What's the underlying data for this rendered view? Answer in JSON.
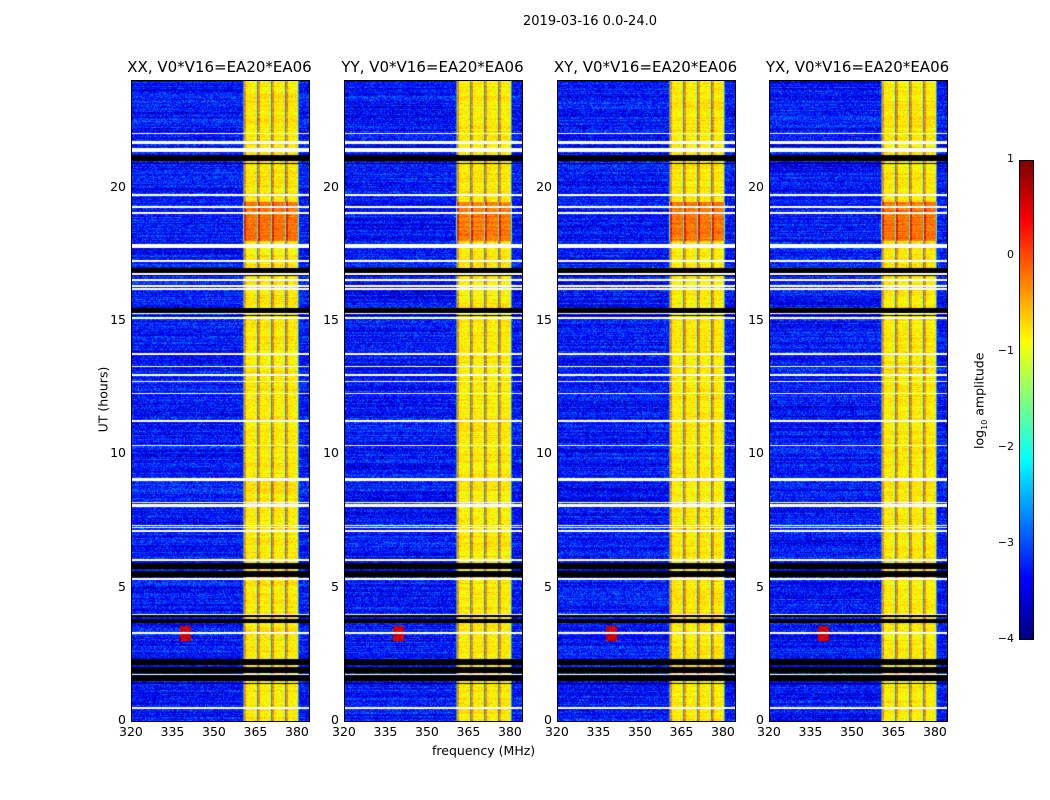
{
  "chart_data": {
    "type": "heatmap",
    "title": "2019-03-16 0.0-24.0",
    "xlabel": "frequency (MHz)",
    "ylabel": "UT (hours)",
    "xlim": [
      320,
      384
    ],
    "ylim": [
      0,
      24
    ],
    "xticks": [
      "320",
      "335",
      "350",
      "365",
      "380"
    ],
    "yticks": [
      "0",
      "5",
      "10",
      "15",
      "20"
    ],
    "panels": [
      {
        "title": "XX, V0*V16=EA20*EA06"
      },
      {
        "title": "YY, V0*V16=EA20*EA06"
      },
      {
        "title": "XY, V0*V16=EA20*EA06"
      },
      {
        "title": "YX, V0*V16=EA20*EA06"
      }
    ],
    "colorbar": {
      "label_prefix": "log",
      "label_sub": "10",
      "label_suffix": " amplitude",
      "range": [
        -4,
        1
      ],
      "ticks": [
        "1",
        "0",
        "−1",
        "−2",
        "−3",
        "−4"
      ],
      "colormap": "jet"
    },
    "signal_band_mhz": [
      360,
      380
    ],
    "background_log_amplitude": -3.3,
    "band_log_amplitude": -0.8,
    "flagged_hours": [
      [
        20.9,
        21.3
      ],
      [
        16.7,
        17.0
      ],
      [
        15.2,
        15.5
      ],
      [
        5.4,
        6.0
      ],
      [
        3.7,
        4.0
      ],
      [
        1.4,
        2.4
      ]
    ]
  }
}
